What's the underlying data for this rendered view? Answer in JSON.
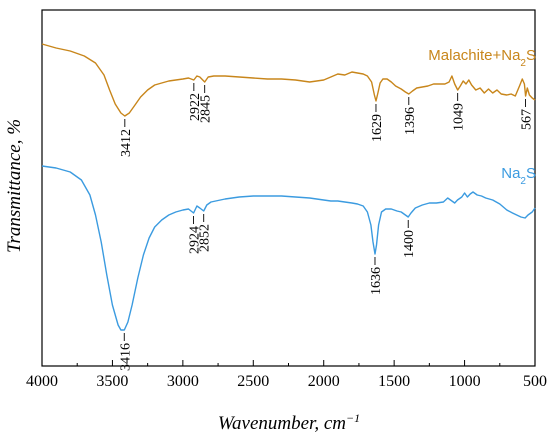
{
  "chart_data": {
    "type": "line",
    "title": "",
    "xlabel": "Wavenumber, cm",
    "xlabel_sup": "−1",
    "ylabel": "Transmittance, %",
    "xlim": [
      4000,
      500
    ],
    "x_reversed": true,
    "x_ticks": [
      "4000",
      "3500",
      "3000",
      "2500",
      "2000",
      "1500",
      "1000",
      "500"
    ],
    "y_ticks_shown": false,
    "grid": false,
    "series": [
      {
        "name": "Malachite+Na",
        "name_sub": "2",
        "name_tail": "S",
        "color": "#C8861B",
        "points": [
          [
            4000,
            34
          ],
          [
            3900,
            38
          ],
          [
            3800,
            41
          ],
          [
            3700,
            46
          ],
          [
            3620,
            53
          ],
          [
            3560,
            65
          ],
          [
            3520,
            80
          ],
          [
            3480,
            94
          ],
          [
            3440,
            103
          ],
          [
            3412,
            106
          ],
          [
            3380,
            103
          ],
          [
            3340,
            95
          ],
          [
            3300,
            87
          ],
          [
            3250,
            80
          ],
          [
            3200,
            75
          ],
          [
            3150,
            73
          ],
          [
            3100,
            71
          ],
          [
            3050,
            70
          ],
          [
            3000,
            69
          ],
          [
            2960,
            68
          ],
          [
            2922,
            70
          ],
          [
            2900,
            66
          ],
          [
            2880,
            67
          ],
          [
            2845,
            72
          ],
          [
            2820,
            67
          ],
          [
            2780,
            66
          ],
          [
            2700,
            66
          ],
          [
            2600,
            67
          ],
          [
            2500,
            68
          ],
          [
            2400,
            69
          ],
          [
            2300,
            69
          ],
          [
            2200,
            70
          ],
          [
            2100,
            72
          ],
          [
            2050,
            71
          ],
          [
            2000,
            70
          ],
          [
            1950,
            67
          ],
          [
            1900,
            64
          ],
          [
            1850,
            65
          ],
          [
            1800,
            62
          ],
          [
            1760,
            63
          ],
          [
            1720,
            64
          ],
          [
            1690,
            66
          ],
          [
            1660,
            72
          ],
          [
            1640,
            85
          ],
          [
            1629,
            91
          ],
          [
            1615,
            83
          ],
          [
            1600,
            73
          ],
          [
            1580,
            69
          ],
          [
            1550,
            69
          ],
          [
            1520,
            72
          ],
          [
            1490,
            76
          ],
          [
            1450,
            79
          ],
          [
            1420,
            82
          ],
          [
            1396,
            84
          ],
          [
            1370,
            81
          ],
          [
            1340,
            78
          ],
          [
            1300,
            77
          ],
          [
            1260,
            76
          ],
          [
            1220,
            74
          ],
          [
            1180,
            74
          ],
          [
            1140,
            74
          ],
          [
            1110,
            72
          ],
          [
            1090,
            66
          ],
          [
            1070,
            74
          ],
          [
            1049,
            80
          ],
          [
            1030,
            76
          ],
          [
            1010,
            71
          ],
          [
            990,
            74
          ],
          [
            970,
            70
          ],
          [
            950,
            75
          ],
          [
            920,
            80
          ],
          [
            890,
            78
          ],
          [
            860,
            83
          ],
          [
            830,
            79
          ],
          [
            800,
            83
          ],
          [
            770,
            80
          ],
          [
            740,
            84
          ],
          [
            700,
            85
          ],
          [
            670,
            84
          ],
          [
            640,
            86
          ],
          [
            610,
            76
          ],
          [
            590,
            69
          ],
          [
            575,
            74
          ],
          [
            567,
            86
          ],
          [
            555,
            78
          ],
          [
            540,
            85
          ],
          [
            520,
            88
          ],
          [
            500,
            90
          ]
        ],
        "annotations": [
          "3412",
          "2922",
          "2845",
          "1629",
          "1396",
          "1049",
          "567"
        ]
      },
      {
        "name": "Na",
        "name_sub": "2",
        "name_tail": "S",
        "color": "#3B9BE0",
        "points": [
          [
            4000,
            156
          ],
          [
            3900,
            158
          ],
          [
            3800,
            162
          ],
          [
            3720,
            170
          ],
          [
            3660,
            185
          ],
          [
            3620,
            205
          ],
          [
            3580,
            232
          ],
          [
            3540,
            265
          ],
          [
            3500,
            295
          ],
          [
            3460,
            315
          ],
          [
            3440,
            320
          ],
          [
            3416,
            320
          ],
          [
            3390,
            312
          ],
          [
            3360,
            295
          ],
          [
            3320,
            268
          ],
          [
            3280,
            245
          ],
          [
            3240,
            228
          ],
          [
            3200,
            217
          ],
          [
            3150,
            210
          ],
          [
            3100,
            205
          ],
          [
            3050,
            202
          ],
          [
            3000,
            200
          ],
          [
            2960,
            199
          ],
          [
            2924,
            203
          ],
          [
            2900,
            196
          ],
          [
            2880,
            198
          ],
          [
            2852,
            201
          ],
          [
            2830,
            195
          ],
          [
            2800,
            192
          ],
          [
            2700,
            189
          ],
          [
            2600,
            187
          ],
          [
            2500,
            186
          ],
          [
            2400,
            186
          ],
          [
            2300,
            186
          ],
          [
            2200,
            187
          ],
          [
            2100,
            188
          ],
          [
            2000,
            190
          ],
          [
            1950,
            191
          ],
          [
            1900,
            191
          ],
          [
            1850,
            192
          ],
          [
            1800,
            193
          ],
          [
            1760,
            194
          ],
          [
            1720,
            196
          ],
          [
            1690,
            202
          ],
          [
            1665,
            215
          ],
          [
            1650,
            232
          ],
          [
            1636,
            244
          ],
          [
            1625,
            235
          ],
          [
            1610,
            215
          ],
          [
            1590,
            202
          ],
          [
            1560,
            199
          ],
          [
            1520,
            199
          ],
          [
            1480,
            201
          ],
          [
            1450,
            202
          ],
          [
            1420,
            205
          ],
          [
            1400,
            207
          ],
          [
            1380,
            203
          ],
          [
            1350,
            198
          ],
          [
            1300,
            195
          ],
          [
            1250,
            193
          ],
          [
            1200,
            193
          ],
          [
            1150,
            192
          ],
          [
            1120,
            188
          ],
          [
            1100,
            190
          ],
          [
            1070,
            193
          ],
          [
            1050,
            190
          ],
          [
            1020,
            187
          ],
          [
            1000,
            183
          ],
          [
            980,
            187
          ],
          [
            960,
            184
          ],
          [
            940,
            182
          ],
          [
            910,
            185
          ],
          [
            880,
            186
          ],
          [
            850,
            188
          ],
          [
            800,
            190
          ],
          [
            750,
            194
          ],
          [
            700,
            200
          ],
          [
            660,
            203
          ],
          [
            630,
            205
          ],
          [
            600,
            207
          ],
          [
            570,
            208
          ],
          [
            550,
            205
          ],
          [
            520,
            202
          ],
          [
            500,
            198
          ]
        ],
        "annotations": [
          "3416",
          "2924",
          "2852",
          "1636",
          "1400"
        ]
      }
    ]
  }
}
